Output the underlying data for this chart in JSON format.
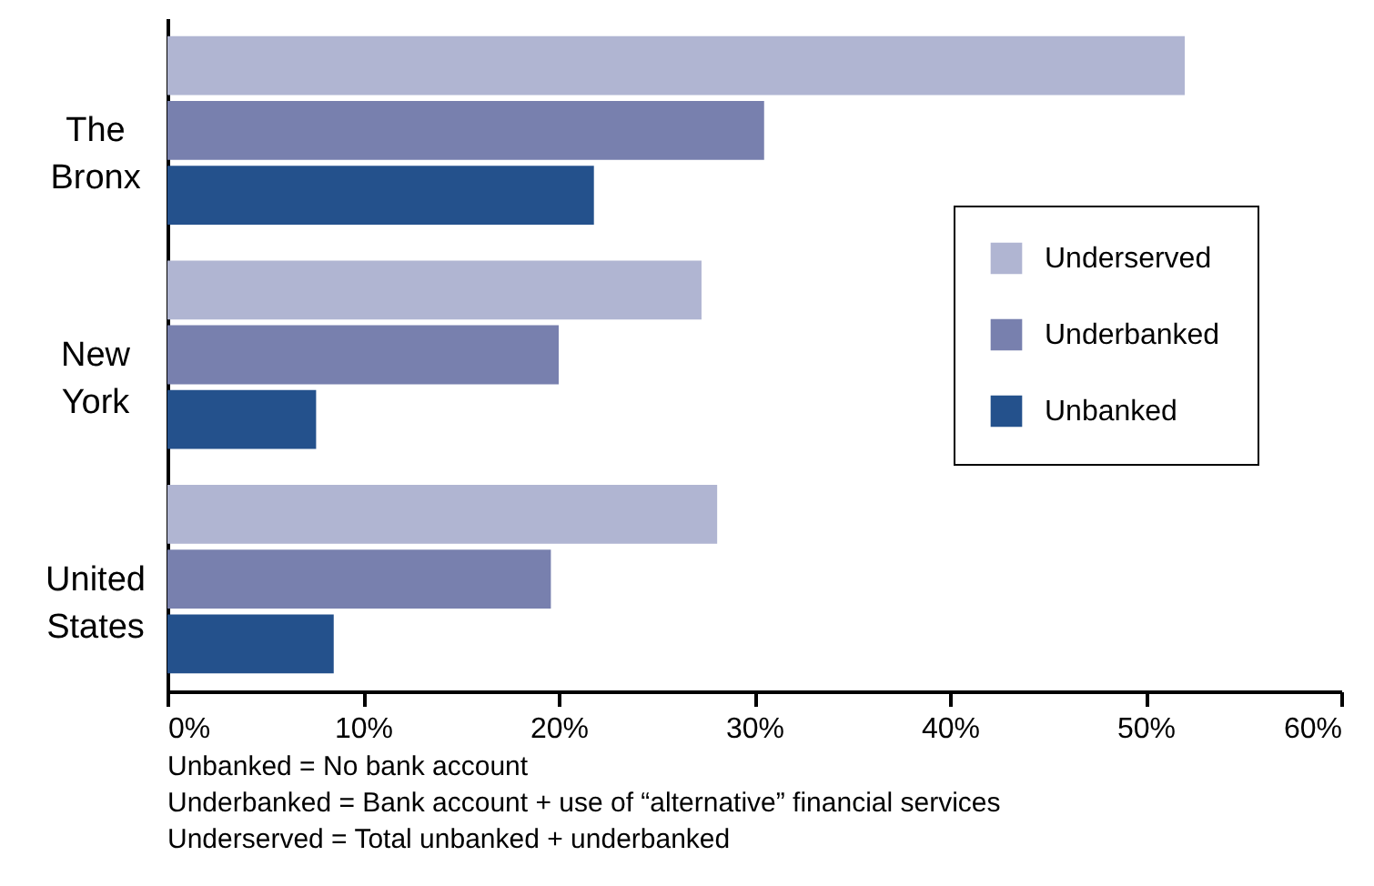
{
  "chart_data": {
    "type": "bar",
    "orientation": "horizontal",
    "categories": [
      "The Bronx",
      "New York",
      "United States"
    ],
    "series": [
      {
        "name": "Underserved",
        "color": "#b0b5d2",
        "values": [
          52.0,
          27.3,
          28.1
        ]
      },
      {
        "name": "Underbanked",
        "color": "#7880ae",
        "values": [
          30.5,
          20.0,
          19.6
        ]
      },
      {
        "name": "Unbanked",
        "color": "#24518c",
        "values": [
          21.8,
          7.6,
          8.5
        ]
      }
    ],
    "xlim": [
      0,
      60
    ],
    "xticks": [
      {
        "value": 0,
        "label": "0%"
      },
      {
        "value": 10,
        "label": "10%"
      },
      {
        "value": 20,
        "label": "20%"
      },
      {
        "value": 30,
        "label": "30%"
      },
      {
        "value": 40,
        "label": "40%"
      },
      {
        "value": 50,
        "label": "50%"
      },
      {
        "value": 60,
        "label": "60%"
      }
    ],
    "grid": false,
    "legend": "right",
    "annotations": [
      "Unbanked = No bank account",
      "Underbanked = Bank account + use of “alternative” financial services",
      "Underserved = Total unbanked + underbanked"
    ]
  }
}
